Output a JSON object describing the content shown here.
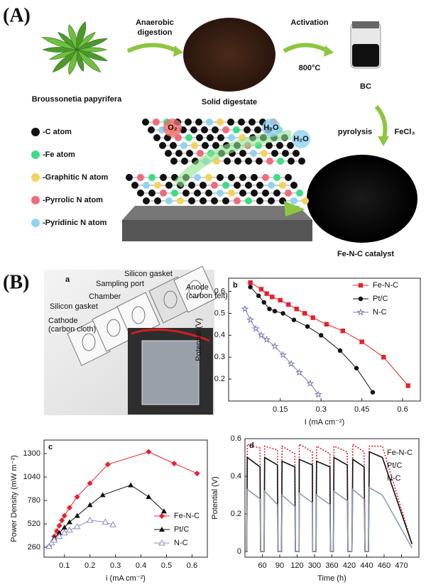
{
  "panel_a": {
    "label": "(A)",
    "plant": "Broussonetia papyrifera",
    "step1": [
      "Anaerobic",
      "digestion"
    ],
    "digestate": "Solid digestate",
    "step2": "Activation",
    "temperature": "800°C",
    "bc": "BC",
    "pyrolysis": "pyrolysis",
    "reagent": "FeCl₃",
    "catalyst": "Fe-N-C  catalyst",
    "molecules": [
      "O₂",
      "H₂O",
      "H₂O"
    ],
    "atom_legend": [
      "-C atom",
      "-Fe atom",
      "-Graphitic N atom",
      "-Pyrrolic N atom",
      "-Pyridinic N atom"
    ]
  },
  "panel_b": {
    "label": "(B)",
    "schematic": {
      "letter": "a",
      "parts": [
        "Silicon gasket",
        "Sampling port",
        "Anode",
        "(carbon felt)",
        "Chamber",
        "Silicon gasket",
        "Cathode",
        "(carbon cloth)"
      ]
    }
  },
  "chart_data": [
    {
      "type": "line",
      "letter": "b",
      "x_label": "I (mA cm⁻²)",
      "y_label": "Potential (V)",
      "xlim": [
        -0.04,
        0.665
      ],
      "ylim": [
        0.1,
        0.66
      ],
      "xticks": [
        0.15,
        0.3,
        0.45,
        0.6
      ],
      "yticks": [
        0.2,
        0.3,
        0.4,
        0.5,
        0.6
      ],
      "legend": "upper right",
      "series": [
        {
          "name": "Fe-N-C",
          "color": "#e8202a",
          "marker": "square",
          "x": [
            0.04,
            0.08,
            0.1,
            0.12,
            0.15,
            0.18,
            0.21,
            0.24,
            0.27,
            0.32,
            0.38,
            0.45,
            0.53,
            0.62
          ],
          "values": [
            0.64,
            0.61,
            0.59,
            0.575,
            0.56,
            0.54,
            0.52,
            0.5,
            0.48,
            0.45,
            0.42,
            0.37,
            0.3,
            0.17
          ]
        },
        {
          "name": "Pt/C",
          "color": "#111111",
          "marker": "circle",
          "x": [
            0.04,
            0.07,
            0.09,
            0.11,
            0.13,
            0.16,
            0.2,
            0.25,
            0.3,
            0.37,
            0.43,
            0.49
          ],
          "values": [
            0.62,
            0.58,
            0.55,
            0.52,
            0.51,
            0.5,
            0.47,
            0.44,
            0.4,
            0.33,
            0.25,
            0.14
          ]
        },
        {
          "name": "N-C",
          "color": "#7a7ab8",
          "marker": "star",
          "x": [
            0.02,
            0.04,
            0.06,
            0.08,
            0.1,
            0.13,
            0.16,
            0.19,
            0.22,
            0.26,
            0.29
          ],
          "values": [
            0.52,
            0.47,
            0.43,
            0.4,
            0.38,
            0.35,
            0.31,
            0.27,
            0.23,
            0.18,
            0.13
          ]
        }
      ]
    },
    {
      "type": "line",
      "letter": "c",
      "x_label": "i (mA cm⁻²)",
      "y_label": "Power Density (mW m⁻²)",
      "xlim": [
        0.02,
        0.66
      ],
      "ylim": [
        150,
        1450
      ],
      "xticks": [
        0.1,
        0.2,
        0.3,
        0.4,
        0.5,
        0.6
      ],
      "yticks": [
        260,
        520,
        780,
        1040,
        1300
      ],
      "legend": "lower right",
      "series": [
        {
          "name": "Fe-N-C",
          "color": "#e8202a",
          "marker": "diamond",
          "x": [
            0.04,
            0.06,
            0.07,
            0.08,
            0.09,
            0.1,
            0.12,
            0.15,
            0.2,
            0.27,
            0.43,
            0.53,
            0.62
          ],
          "values": [
            270,
            380,
            440,
            500,
            560,
            610,
            700,
            820,
            970,
            1180,
            1320,
            1190,
            1080
          ]
        },
        {
          "name": "Pt/C",
          "color": "#111111",
          "marker": "triangle",
          "x": [
            0.04,
            0.06,
            0.08,
            0.1,
            0.12,
            0.15,
            0.2,
            0.25,
            0.36,
            0.43,
            0.49
          ],
          "values": [
            270,
            360,
            420,
            480,
            540,
            610,
            730,
            840,
            950,
            820,
            660
          ]
        },
        {
          "name": "N-C",
          "color": "#8a8ac8",
          "marker": "triangle-open",
          "x": [
            0.04,
            0.05,
            0.06,
            0.08,
            0.1,
            0.12,
            0.15,
            0.2,
            0.26,
            0.29
          ],
          "values": [
            270,
            310,
            340,
            380,
            420,
            450,
            490,
            560,
            540,
            510
          ]
        }
      ]
    },
    {
      "type": "line",
      "letter": "d",
      "x_label": "Time (h)",
      "y_label": "Potential (V)",
      "xscale": "piecewise",
      "xlim": [
        30,
        480
      ],
      "ylim": [
        -0.03,
        0.6
      ],
      "xticks": [
        60,
        90,
        120,
        300,
        360,
        420,
        440,
        460,
        470
      ],
      "yticks": [
        0,
        0.2,
        0.4,
        0.6
      ],
      "legend": "center right",
      "x": [
        33,
        34,
        56,
        57,
        63,
        64,
        86,
        87,
        93,
        94,
        116,
        117,
        140,
        142,
        278,
        280,
        305,
        307,
        353,
        355,
        365,
        367,
        413,
        415,
        423,
        424,
        437,
        438,
        442,
        443,
        458,
        476
      ],
      "series": [
        {
          "name": "Fe-N-C",
          "color": "#e8202a",
          "marker": "none",
          "style": "dotted",
          "values": [
            0,
            0.57,
            0.55,
            0,
            0,
            0.56,
            0.54,
            0,
            0,
            0.56,
            0.52,
            0,
            0,
            0.57,
            0.53,
            0,
            0,
            0.56,
            0.52,
            0,
            0,
            0.56,
            0.53,
            0,
            0,
            0.57,
            0.53,
            0,
            0,
            0.56,
            0.56,
            0.04
          ]
        },
        {
          "name": "Pt/C",
          "color": "#111111",
          "marker": "none",
          "style": "solid",
          "values": [
            0,
            0.5,
            0.45,
            0,
            0,
            0.5,
            0.46,
            0,
            0,
            0.48,
            0.45,
            0,
            0,
            0.49,
            0.46,
            0,
            0,
            0.48,
            0.45,
            0,
            0,
            0.5,
            0.46,
            0,
            0,
            0.49,
            0.45,
            0,
            0,
            0.53,
            0.5,
            0.04
          ]
        },
        {
          "name": "N-C",
          "color": "#8e9bb5",
          "marker": "none",
          "style": "solid",
          "values": [
            0,
            0.33,
            0.28,
            0,
            0,
            0.32,
            0.25,
            0,
            0,
            0.3,
            0.24,
            0,
            0,
            0.31,
            0.26,
            0,
            0,
            0.3,
            0.25,
            0,
            0,
            0.32,
            0.27,
            0,
            0,
            0.33,
            0.28,
            0,
            0,
            0.34,
            0.3,
            0.02
          ]
        }
      ]
    }
  ]
}
